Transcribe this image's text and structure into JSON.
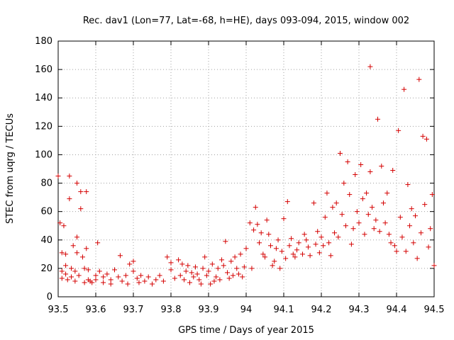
{
  "chart_data": {
    "type": "scatter",
    "title": "Rec. dav1 (Lon=77, Lat=-68, h=HE), days 093-094, 2015, window 002",
    "xlabel": "GPS time / Days of year 2015",
    "ylabel": "STEC from uqrg / TECUs",
    "xlim": [
      93.5,
      94.5
    ],
    "ylim": [
      0,
      180
    ],
    "xticks": [
      "93.5",
      "93.6",
      "93.7",
      "93.8",
      "93.9",
      "94",
      "94.1",
      "94.2",
      "94.3",
      "94.4",
      "94.5"
    ],
    "yticks": [
      "0",
      "20",
      "40",
      "60",
      "80",
      "100",
      "120",
      "140",
      "160",
      "180"
    ],
    "grid": true,
    "marker": "plus",
    "color": "#d40000",
    "series": [
      {
        "points": [
          [
            93.5,
            85
          ],
          [
            93.505,
            52
          ],
          [
            93.51,
            31
          ],
          [
            93.51,
            18
          ],
          [
            93.51,
            13
          ],
          [
            93.515,
            50
          ],
          [
            93.52,
            30
          ],
          [
            93.52,
            22
          ],
          [
            93.52,
            16
          ],
          [
            93.525,
            12
          ],
          [
            93.53,
            85
          ],
          [
            93.53,
            69
          ],
          [
            93.535,
            20
          ],
          [
            93.535,
            14
          ],
          [
            93.54,
            36
          ],
          [
            93.545,
            18
          ],
          [
            93.545,
            11
          ],
          [
            93.55,
            80
          ],
          [
            93.55,
            42
          ],
          [
            93.55,
            31
          ],
          [
            93.555,
            15
          ],
          [
            93.56,
            62
          ],
          [
            93.56,
            74
          ],
          [
            93.565,
            28
          ],
          [
            93.57,
            20
          ],
          [
            93.57,
            10
          ],
          [
            93.575,
            74
          ],
          [
            93.575,
            34
          ],
          [
            93.58,
            19
          ],
          [
            93.58,
            12
          ],
          [
            93.585,
            11
          ],
          [
            93.59,
            10
          ],
          [
            93.6,
            15
          ],
          [
            93.6,
            12
          ],
          [
            93.605,
            38
          ],
          [
            93.61,
            18
          ],
          [
            93.62,
            14
          ],
          [
            93.62,
            10
          ],
          [
            93.63,
            16
          ],
          [
            93.64,
            12
          ],
          [
            93.64,
            9
          ],
          [
            93.65,
            19
          ],
          [
            93.66,
            14
          ],
          [
            93.665,
            29
          ],
          [
            93.67,
            11
          ],
          [
            93.68,
            15
          ],
          [
            93.685,
            9
          ],
          [
            93.69,
            23
          ],
          [
            93.7,
            25
          ],
          [
            93.7,
            18
          ],
          [
            93.71,
            13
          ],
          [
            93.715,
            10
          ],
          [
            93.72,
            15
          ],
          [
            93.73,
            11
          ],
          [
            93.74,
            14
          ],
          [
            93.75,
            9
          ],
          [
            93.76,
            12
          ],
          [
            93.77,
            15
          ],
          [
            93.78,
            11
          ],
          [
            93.79,
            28
          ],
          [
            93.8,
            19
          ],
          [
            93.8,
            24
          ],
          [
            93.81,
            13
          ],
          [
            93.82,
            26
          ],
          [
            93.825,
            15
          ],
          [
            93.83,
            23
          ],
          [
            93.835,
            12
          ],
          [
            93.84,
            18
          ],
          [
            93.845,
            22
          ],
          [
            93.85,
            10
          ],
          [
            93.855,
            17
          ],
          [
            93.86,
            14
          ],
          [
            93.865,
            21
          ],
          [
            93.87,
            16
          ],
          [
            93.875,
            12
          ],
          [
            93.88,
            9
          ],
          [
            93.885,
            20
          ],
          [
            93.89,
            28
          ],
          [
            93.895,
            15
          ],
          [
            93.9,
            18
          ],
          [
            93.905,
            9
          ],
          [
            93.91,
            23
          ],
          [
            93.915,
            11
          ],
          [
            93.92,
            14
          ],
          [
            93.925,
            20
          ],
          [
            93.93,
            12
          ],
          [
            93.935,
            26
          ],
          [
            93.94,
            22
          ],
          [
            93.945,
            39
          ],
          [
            93.95,
            17
          ],
          [
            93.955,
            13
          ],
          [
            93.96,
            25
          ],
          [
            93.965,
            15
          ],
          [
            93.97,
            28
          ],
          [
            93.975,
            20
          ],
          [
            93.98,
            16
          ],
          [
            93.985,
            30
          ],
          [
            93.99,
            14
          ],
          [
            93.995,
            21
          ],
          [
            94.0,
            34
          ],
          [
            94.01,
            52
          ],
          [
            94.015,
            20
          ],
          [
            94.02,
            47
          ],
          [
            94.025,
            63
          ],
          [
            94.03,
            51
          ],
          [
            94.035,
            38
          ],
          [
            94.04,
            45
          ],
          [
            94.045,
            30
          ],
          [
            94.05,
            28
          ],
          [
            94.055,
            54
          ],
          [
            94.06,
            44
          ],
          [
            94.065,
            36
          ],
          [
            94.07,
            22
          ],
          [
            94.075,
            25
          ],
          [
            94.08,
            34
          ],
          [
            94.085,
            40
          ],
          [
            94.09,
            20
          ],
          [
            94.095,
            32
          ],
          [
            94.1,
            55
          ],
          [
            94.105,
            27
          ],
          [
            94.11,
            67
          ],
          [
            94.115,
            36
          ],
          [
            94.12,
            41
          ],
          [
            94.125,
            30
          ],
          [
            94.13,
            28
          ],
          [
            94.135,
            33
          ],
          [
            94.14,
            38
          ],
          [
            94.15,
            30
          ],
          [
            94.155,
            44
          ],
          [
            94.16,
            40
          ],
          [
            94.165,
            35
          ],
          [
            94.17,
            29
          ],
          [
            94.18,
            66
          ],
          [
            94.185,
            37
          ],
          [
            94.19,
            46
          ],
          [
            94.195,
            31
          ],
          [
            94.2,
            42
          ],
          [
            94.205,
            36
          ],
          [
            94.21,
            56
          ],
          [
            94.215,
            73
          ],
          [
            94.22,
            38
          ],
          [
            94.225,
            29
          ],
          [
            94.23,
            63
          ],
          [
            94.235,
            45
          ],
          [
            94.24,
            66
          ],
          [
            94.245,
            42
          ],
          [
            94.25,
            101
          ],
          [
            94.255,
            58
          ],
          [
            94.26,
            80
          ],
          [
            94.265,
            50
          ],
          [
            94.27,
            95
          ],
          [
            94.275,
            72
          ],
          [
            94.28,
            37
          ],
          [
            94.285,
            48
          ],
          [
            94.29,
            86
          ],
          [
            94.295,
            60
          ],
          [
            94.3,
            52
          ],
          [
            94.305,
            93
          ],
          [
            94.31,
            69
          ],
          [
            94.315,
            44
          ],
          [
            94.32,
            73
          ],
          [
            94.325,
            58
          ],
          [
            94.33,
            162
          ],
          [
            94.33,
            88
          ],
          [
            94.335,
            63
          ],
          [
            94.34,
            48
          ],
          [
            94.345,
            54
          ],
          [
            94.35,
            125
          ],
          [
            94.355,
            46
          ],
          [
            94.36,
            92
          ],
          [
            94.365,
            66
          ],
          [
            94.37,
            52
          ],
          [
            94.375,
            73
          ],
          [
            94.38,
            44
          ],
          [
            94.385,
            38
          ],
          [
            94.39,
            89
          ],
          [
            94.395,
            36
          ],
          [
            94.4,
            32
          ],
          [
            94.405,
            117
          ],
          [
            94.41,
            56
          ],
          [
            94.415,
            42
          ],
          [
            94.42,
            146
          ],
          [
            94.425,
            32
          ],
          [
            94.43,
            79
          ],
          [
            94.435,
            50
          ],
          [
            94.44,
            62
          ],
          [
            94.445,
            38
          ],
          [
            94.45,
            57
          ],
          [
            94.455,
            27
          ],
          [
            94.46,
            153
          ],
          [
            94.465,
            45
          ],
          [
            94.47,
            113
          ],
          [
            94.475,
            65
          ],
          [
            94.48,
            111
          ],
          [
            94.485,
            35
          ],
          [
            94.49,
            48
          ],
          [
            94.495,
            72
          ],
          [
            94.5,
            22
          ]
        ]
      }
    ]
  }
}
